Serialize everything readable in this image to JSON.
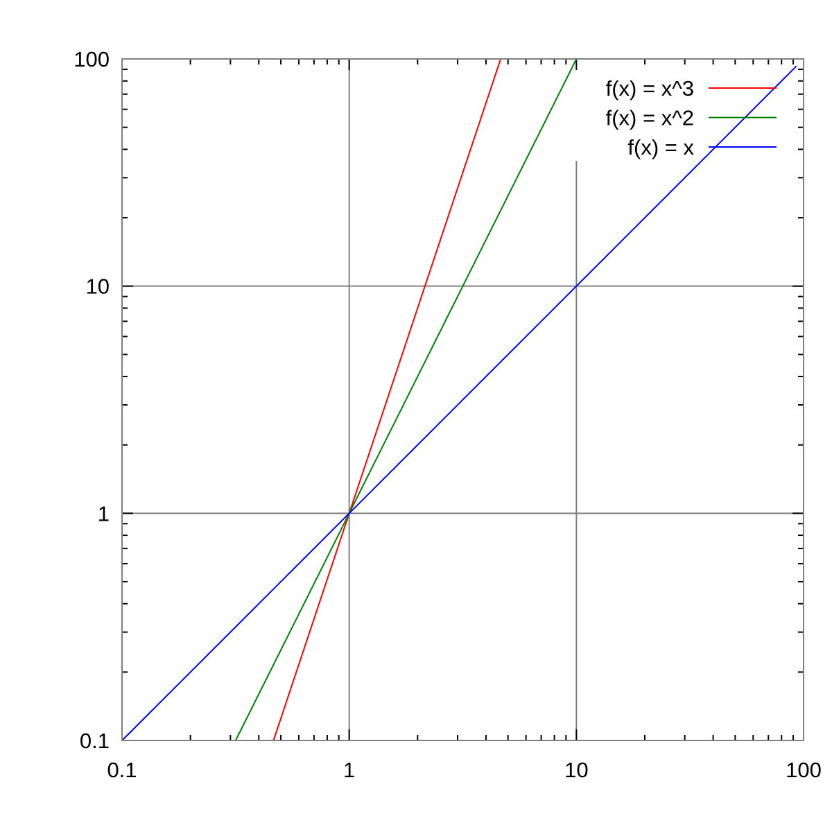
{
  "chart_data": {
    "type": "line",
    "title": "",
    "xlabel": "",
    "ylabel": "",
    "xscale": "log",
    "yscale": "log",
    "xlim": [
      0.1,
      100
    ],
    "ylim": [
      0.1,
      100
    ],
    "grid": true,
    "legend_position": "top-right",
    "x_tick_labels": [
      "0.1",
      "1",
      "10",
      "100"
    ],
    "y_tick_labels": [
      "0.1",
      "1",
      "10",
      "100"
    ],
    "x_ticks": [
      0.1,
      1,
      10,
      100
    ],
    "y_ticks": [
      0.1,
      1,
      10,
      100
    ],
    "axis_color": "#808080",
    "series": [
      {
        "name": "f(x) = x^3",
        "exponent": 3,
        "color": "#ff0000"
      },
      {
        "name": "f(x) = x^2",
        "exponent": 2,
        "color": "#008000"
      },
      {
        "name": "f(x) = x",
        "exponent": 1,
        "color": "#0000ff"
      }
    ]
  }
}
